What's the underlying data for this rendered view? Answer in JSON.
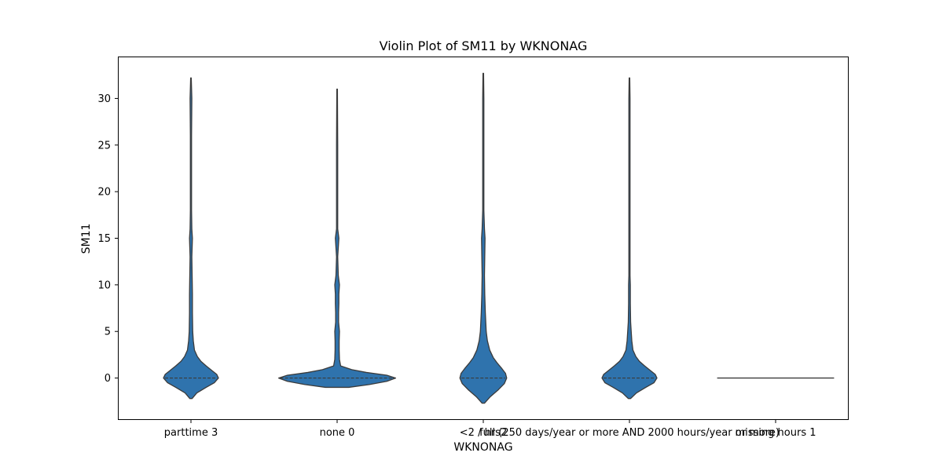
{
  "chart_data": {
    "type": "violin",
    "title": "Violin Plot of SM11 by WKNONAG",
    "xlabel": "WKNONAG",
    "ylabel": "SM11",
    "ylim": [
      -4.5,
      34.5
    ],
    "y_ticks": [
      0,
      5,
      10,
      15,
      20,
      25,
      30
    ],
    "grid": false,
    "legend": "none",
    "fill_color": "#2f73ad",
    "line_color": "#3b3b3b",
    "categories": [
      "parttime 3",
      "none 0",
      "<2 / hrs2",
      "full (250 days/year or more AND 2000 hours/year or more)",
      "missing hours 1"
    ],
    "violins": [
      {
        "category": "parttime 3",
        "median": 0,
        "y_min": -2.2,
        "y_max": 32.2,
        "profile": [
          [
            -2.2,
            0.02
          ],
          [
            -1.6,
            0.1
          ],
          [
            -1.0,
            0.26
          ],
          [
            -0.5,
            0.4
          ],
          [
            0,
            0.47
          ],
          [
            0.4,
            0.44
          ],
          [
            0.8,
            0.36
          ],
          [
            1.3,
            0.26
          ],
          [
            1.8,
            0.17
          ],
          [
            2.3,
            0.11
          ],
          [
            3.0,
            0.06
          ],
          [
            4,
            0.04
          ],
          [
            5,
            0.03
          ],
          [
            7,
            0.025
          ],
          [
            9,
            0.025
          ],
          [
            11,
            0.02
          ],
          [
            13,
            0.015
          ],
          [
            15,
            0.025
          ],
          [
            16,
            0.015
          ],
          [
            18,
            0.01
          ],
          [
            22,
            0.01
          ],
          [
            26,
            0.01
          ],
          [
            30,
            0.015
          ],
          [
            32.2,
            0.005
          ]
        ]
      },
      {
        "category": "none 0",
        "median": 0,
        "y_min": -1.0,
        "y_max": 31.0,
        "profile": [
          [
            -1.0,
            0.2
          ],
          [
            -0.7,
            0.55
          ],
          [
            -0.35,
            0.85
          ],
          [
            0,
            1.0
          ],
          [
            0.3,
            0.85
          ],
          [
            0.6,
            0.5
          ],
          [
            0.9,
            0.25
          ],
          [
            1.3,
            0.06
          ],
          [
            2,
            0.04
          ],
          [
            3,
            0.035
          ],
          [
            4,
            0.035
          ],
          [
            5,
            0.04
          ],
          [
            6,
            0.025
          ],
          [
            7,
            0.025
          ],
          [
            8,
            0.03
          ],
          [
            9,
            0.03
          ],
          [
            10,
            0.04
          ],
          [
            11,
            0.02
          ],
          [
            13,
            0.01
          ],
          [
            14.5,
            0.025
          ],
          [
            15,
            0.03
          ],
          [
            16,
            0.01
          ],
          [
            20,
            0.01
          ],
          [
            25,
            0.01
          ],
          [
            31,
            0.005
          ]
        ]
      },
      {
        "category": "<2 / hrs2",
        "median": 0,
        "y_min": -2.7,
        "y_max": 32.7,
        "profile": [
          [
            -2.7,
            0.02
          ],
          [
            -2.0,
            0.12
          ],
          [
            -1.3,
            0.25
          ],
          [
            -0.6,
            0.36
          ],
          [
            0,
            0.4
          ],
          [
            0.5,
            0.38
          ],
          [
            1.0,
            0.32
          ],
          [
            1.6,
            0.24
          ],
          [
            2.2,
            0.17
          ],
          [
            3.0,
            0.11
          ],
          [
            4,
            0.07
          ],
          [
            5,
            0.05
          ],
          [
            7,
            0.035
          ],
          [
            9,
            0.025
          ],
          [
            11,
            0.02
          ],
          [
            13,
            0.025
          ],
          [
            15,
            0.03
          ],
          [
            16,
            0.02
          ],
          [
            18,
            0.01
          ],
          [
            22,
            0.01
          ],
          [
            26,
            0.01
          ],
          [
            30,
            0.01
          ],
          [
            32.7,
            0.005
          ]
        ]
      },
      {
        "category": "full (250 days/year or more AND 2000 hours/year or more)",
        "median": 0,
        "y_min": -2.2,
        "y_max": 32.2,
        "profile": [
          [
            -2.2,
            0.02
          ],
          [
            -1.6,
            0.12
          ],
          [
            -1.0,
            0.28
          ],
          [
            -0.5,
            0.42
          ],
          [
            0,
            0.47
          ],
          [
            0.4,
            0.44
          ],
          [
            0.8,
            0.36
          ],
          [
            1.3,
            0.26
          ],
          [
            1.8,
            0.17
          ],
          [
            2.3,
            0.11
          ],
          [
            3.0,
            0.06
          ],
          [
            4,
            0.04
          ],
          [
            5,
            0.03
          ],
          [
            6,
            0.02
          ],
          [
            8,
            0.015
          ],
          [
            10,
            0.015
          ],
          [
            11,
            0.01
          ],
          [
            13,
            0.01
          ],
          [
            16,
            0.01
          ],
          [
            20,
            0.01
          ],
          [
            25,
            0.01
          ],
          [
            30,
            0.01
          ],
          [
            32.2,
            0.005
          ]
        ]
      },
      {
        "category": "missing hours 1",
        "median": 0,
        "y_min": 0,
        "y_max": 0,
        "flat": true,
        "profile": []
      }
    ]
  }
}
